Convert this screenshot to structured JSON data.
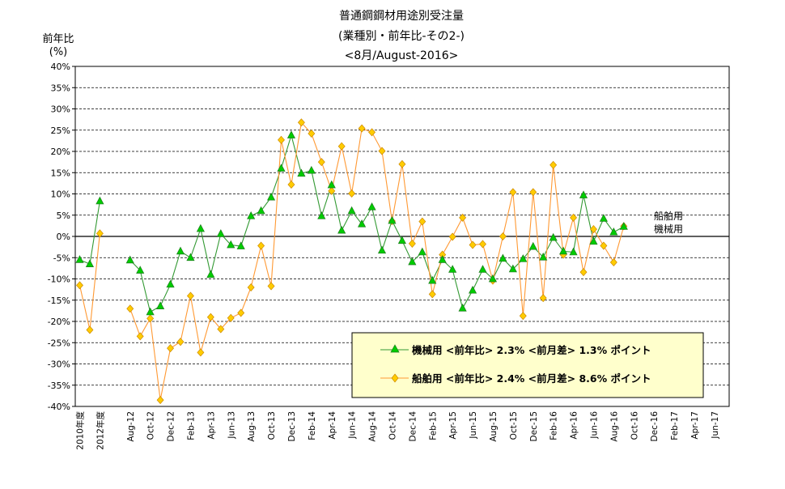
{
  "chart_data": {
    "type": "line",
    "title_lines": [
      "普通鋼鋼材用途別受注量",
      "(業種別・前年比-その2-)",
      "<8月/August-2016>"
    ],
    "ylabel_lines": [
      "前年比",
      "(%)"
    ],
    "ylim": [
      -40,
      40
    ],
    "ytick_values": [
      40,
      35,
      30,
      25,
      20,
      15,
      10,
      5,
      0,
      -5,
      -10,
      -15,
      -20,
      -25,
      -30,
      -35,
      -40
    ],
    "ytick_labels": [
      "40%",
      "35%",
      "30%",
      "25%",
      "20%",
      "15%",
      "10%",
      "5%",
      "0%",
      "-5%",
      "-10%",
      "-15%",
      "-20%",
      "-25%",
      "-30%",
      "-35%",
      "-40%"
    ],
    "grid": true,
    "x_slots": 60,
    "x_tick_labels": [
      {
        "slot": 0,
        "text": "2010年度"
      },
      {
        "slot": 2,
        "text": "2012年度"
      },
      {
        "slot": 5,
        "text": "Aug-12"
      },
      {
        "slot": 7,
        "text": "Oct-12"
      },
      {
        "slot": 9,
        "text": "Dec-12"
      },
      {
        "slot": 11,
        "text": "Feb-13"
      },
      {
        "slot": 13,
        "text": "Apr-13"
      },
      {
        "slot": 15,
        "text": "Jun-13"
      },
      {
        "slot": 17,
        "text": "Aug-13"
      },
      {
        "slot": 19,
        "text": "Oct-13"
      },
      {
        "slot": 21,
        "text": "Dec-13"
      },
      {
        "slot": 23,
        "text": "Feb-14"
      },
      {
        "slot": 25,
        "text": "Apr-14"
      },
      {
        "slot": 27,
        "text": "Jun-14"
      },
      {
        "slot": 29,
        "text": "Aug-14"
      },
      {
        "slot": 31,
        "text": "Oct-14"
      },
      {
        "slot": 33,
        "text": "Dec-14"
      },
      {
        "slot": 35,
        "text": "Feb-15"
      },
      {
        "slot": 37,
        "text": "Apr-15"
      },
      {
        "slot": 39,
        "text": "Jun-15"
      },
      {
        "slot": 41,
        "text": "Aug-15"
      },
      {
        "slot": 43,
        "text": "Oct-15"
      },
      {
        "slot": 45,
        "text": "Dec-15"
      },
      {
        "slot": 47,
        "text": "Feb-16"
      },
      {
        "slot": 49,
        "text": "Apr-16"
      },
      {
        "slot": 51,
        "text": "Jun-16"
      },
      {
        "slot": 53,
        "text": "Aug-16"
      },
      {
        "slot": 55,
        "text": "Oct-16"
      },
      {
        "slot": 57,
        "text": "Dec-16"
      },
      {
        "slot": 59,
        "text": "Feb-17"
      },
      {
        "slot": 61,
        "text": "Apr-17"
      },
      {
        "slot": 63,
        "text": "Jun-17"
      }
    ],
    "series": [
      {
        "name": "機械用",
        "color": "#339933",
        "fill": "#00cc00",
        "marker": "triangle",
        "segments": [
          [
            [
              0,
              -5.5
            ],
            [
              1,
              -6.5
            ],
            [
              2,
              8.3
            ]
          ],
          [
            [
              5,
              -5.6
            ],
            [
              6,
              -8
            ],
            [
              7,
              -17.8
            ],
            [
              8,
              -16.4
            ],
            [
              9,
              -11.3
            ],
            [
              10,
              -3.5
            ],
            [
              11,
              -5
            ],
            [
              12,
              1.8
            ],
            [
              13,
              -9
            ],
            [
              14,
              0.6
            ],
            [
              15,
              -2
            ],
            [
              16,
              -2.3
            ],
            [
              17,
              4.8
            ],
            [
              18,
              6
            ],
            [
              19,
              9.2
            ],
            [
              20,
              16
            ],
            [
              21,
              23.8
            ],
            [
              22,
              14.8
            ],
            [
              23,
              15.5
            ],
            [
              24,
              4.8
            ],
            [
              25,
              12.1
            ],
            [
              26,
              1.4
            ],
            [
              27,
              6
            ],
            [
              28,
              2.9
            ],
            [
              29,
              6.9
            ],
            [
              30,
              -3.3
            ],
            [
              31,
              3.7
            ],
            [
              32,
              -1
            ],
            [
              33,
              -6
            ],
            [
              34,
              -3.7
            ],
            [
              35,
              -10.4
            ],
            [
              36,
              -5.5
            ],
            [
              37,
              -7.8
            ],
            [
              38,
              -16.9
            ],
            [
              39,
              -12.7
            ],
            [
              40,
              -7.8
            ],
            [
              41,
              -10
            ],
            [
              42,
              -5.2
            ],
            [
              43,
              -7.7
            ],
            [
              44,
              -5.3
            ],
            [
              45,
              -2.4
            ],
            [
              46,
              -4.9
            ],
            [
              47,
              -0.3
            ],
            [
              48,
              -3.5
            ],
            [
              49,
              -3.7
            ],
            [
              50,
              9.7
            ],
            [
              51,
              -1.2
            ],
            [
              52,
              4.2
            ],
            [
              53,
              1
            ],
            [
              54,
              2.3
            ]
          ]
        ]
      },
      {
        "name": "船舶用",
        "color": "#ff9933",
        "fill": "#ffcc00",
        "marker": "diamond",
        "segments": [
          [
            [
              0,
              -11.5
            ],
            [
              1,
              -22
            ],
            [
              2,
              0.7
            ]
          ],
          [
            [
              5,
              -17
            ],
            [
              6,
              -23.5
            ],
            [
              7,
              -19.3
            ],
            [
              8,
              -38.5
            ],
            [
              9,
              -26.3
            ],
            [
              10,
              -24.8
            ],
            [
              11,
              -14
            ],
            [
              12,
              -27.3
            ],
            [
              13,
              -19
            ],
            [
              14,
              -21.8
            ],
            [
              15,
              -19.2
            ],
            [
              16,
              -18
            ],
            [
              17,
              -12
            ],
            [
              18,
              -2.2
            ],
            [
              19,
              -11.7
            ],
            [
              20,
              22.7
            ],
            [
              21,
              12.2
            ],
            [
              22,
              26.8
            ],
            [
              23,
              24.2
            ],
            [
              24,
              17.5
            ],
            [
              25,
              10.7
            ],
            [
              26,
              21.2
            ],
            [
              27,
              10.1
            ],
            [
              28,
              25.4
            ],
            [
              29,
              24.5
            ],
            [
              30,
              20.1
            ],
            [
              31,
              3.6
            ],
            [
              32,
              17
            ],
            [
              33,
              -1.7
            ],
            [
              34,
              3.5
            ],
            [
              35,
              -13.6
            ],
            [
              36,
              -4.3
            ],
            [
              37,
              -0.1
            ],
            [
              38,
              4.4
            ],
            [
              39,
              -2
            ],
            [
              40,
              -1.8
            ],
            [
              41,
              -10.4
            ],
            [
              42,
              0
            ],
            [
              43,
              10.4
            ],
            [
              44,
              -18.7
            ],
            [
              45,
              10.4
            ],
            [
              46,
              -14.5
            ],
            [
              47,
              16.8
            ],
            [
              48,
              -4.3
            ],
            [
              49,
              4.4
            ],
            [
              50,
              -8.4
            ],
            [
              51,
              1.7
            ],
            [
              52,
              -2.2
            ],
            [
              53,
              -6.1
            ],
            [
              54,
              2.4
            ]
          ]
        ]
      }
    ],
    "legend": {
      "placement": "bottom-right",
      "entries": [
        {
          "text": "機械用 <前年比> 2.3% <前月差> 1.3% ポイント"
        },
        {
          "text": "船舶用 <前年比> 2.4% <前月差> 8.6% ポイント"
        }
      ]
    },
    "end_labels": [
      "船舶用",
      "機械用"
    ]
  }
}
